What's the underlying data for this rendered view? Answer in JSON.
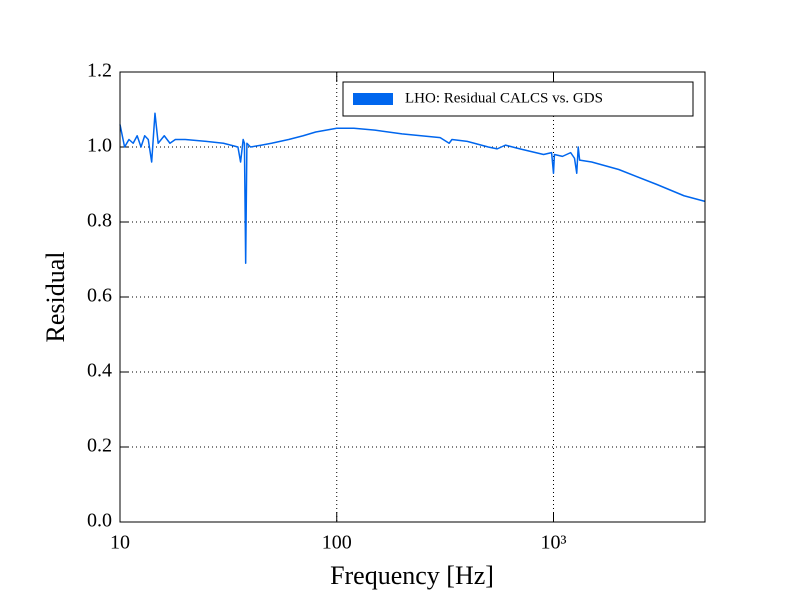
{
  "chart_data": {
    "type": "line",
    "x_label": "Frequency [Hz]",
    "y_label": "Residual",
    "x_scale": "log",
    "grid": true,
    "legend_position": "upper right",
    "xlim": [
      10,
      5000
    ],
    "ylim": [
      0,
      1.2
    ],
    "xticks": [
      10,
      100,
      {
        "value": 1000,
        "label": "10³"
      }
    ],
    "yticks": [
      {
        "value": 0,
        "label": "0.0"
      },
      0.2,
      0.4,
      0.6,
      0.8,
      {
        "value": 1,
        "label": "1.0"
      },
      1.2
    ],
    "x": [
      10,
      10.5,
      11,
      11.5,
      12,
      12.5,
      13,
      13.5,
      14,
      14.5,
      15,
      16,
      17,
      18,
      20,
      25,
      30,
      35,
      36,
      37,
      37.5,
      38,
      38.5,
      40,
      45,
      50,
      60,
      70,
      80,
      100,
      120,
      150,
      200,
      300,
      330,
      340,
      400,
      500,
      550,
      600,
      700,
      900,
      980,
      1000,
      1010,
      1100,
      1200,
      1250,
      1280,
      1300,
      1320,
      1500,
      2000,
      3000,
      4000,
      5000
    ],
    "series": [
      {
        "name": "LHO: Residual CALCS vs. GDS",
        "color": "#0066ee",
        "values": [
          1.06,
          1.0,
          1.02,
          1.01,
          1.03,
          1.0,
          1.03,
          1.02,
          0.96,
          1.09,
          1.01,
          1.03,
          1.01,
          1.02,
          1.02,
          1.015,
          1.01,
          1.0,
          0.96,
          1.02,
          1.01,
          0.69,
          1.01,
          1.0,
          1.005,
          1.01,
          1.02,
          1.03,
          1.04,
          1.05,
          1.05,
          1.045,
          1.035,
          1.025,
          1.01,
          1.02,
          1.015,
          1.0,
          0.995,
          1.005,
          0.995,
          0.98,
          0.985,
          0.93,
          0.98,
          0.975,
          0.985,
          0.97,
          0.93,
          1.0,
          0.965,
          0.96,
          0.94,
          0.9,
          0.87,
          0.855
        ]
      }
    ]
  }
}
